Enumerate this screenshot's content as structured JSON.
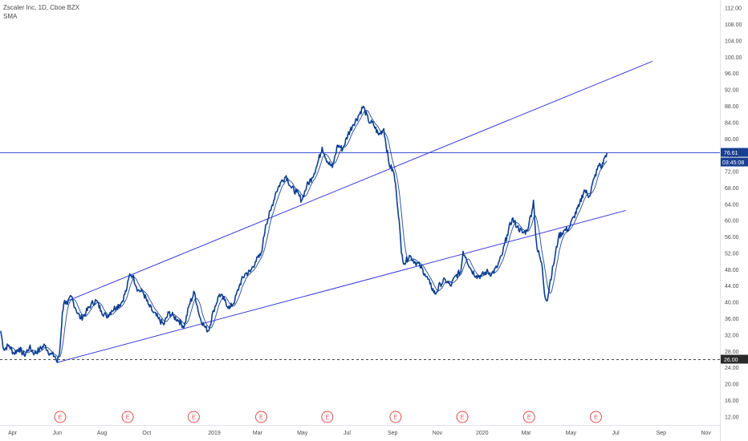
{
  "header": {
    "symbol_line": "Zscaler Inc, 1D, Cboe BZX",
    "indicator": "SMA"
  },
  "colors": {
    "price": "#0d3e91",
    "sma": "#0d3e91",
    "trendline": "#3b3bdc",
    "hline": "#3f51d6",
    "support": "#444444",
    "earnings": "#e64a4a",
    "axis_text": "#4a4a4a",
    "price_badge_bg": "#1a3f8f",
    "support_badge_bg": "#2a2a2a"
  },
  "chart_data": {
    "type": "line",
    "title": "Zscaler Inc, 1D, Cboe BZX",
    "indicator": "SMA",
    "ylim": [
      10,
      114
    ],
    "y_ticks": [
      "112.00",
      "108.00",
      "104.00",
      "100.00",
      "96.00",
      "92.00",
      "88.00",
      "84.00",
      "80.00",
      "76.00",
      "72.00",
      "68.00",
      "64.00",
      "60.00",
      "56.00",
      "52.00",
      "48.00",
      "44.00",
      "40.00",
      "36.00",
      "32.00",
      "28.00",
      "24.00",
      "20.00",
      "16.00",
      "12.00"
    ],
    "x_range": [
      "2018-03-15",
      "2020-11-20"
    ],
    "x_ticks": [
      {
        "label": "Apr",
        "date": "2018-04-01"
      },
      {
        "label": "Jun",
        "date": "2018-06-01"
      },
      {
        "label": "Aug",
        "date": "2018-08-01"
      },
      {
        "label": "Oct",
        "date": "2018-10-01"
      },
      {
        "label": "2019",
        "date": "2019-01-01"
      },
      {
        "label": "Mar",
        "date": "2019-03-01"
      },
      {
        "label": "May",
        "date": "2019-05-01"
      },
      {
        "label": "Jul",
        "date": "2019-07-01"
      },
      {
        "label": "Sep",
        "date": "2019-09-01"
      },
      {
        "label": "Nov",
        "date": "2019-11-01"
      },
      {
        "label": "2020",
        "date": "2020-01-01"
      },
      {
        "label": "Mar",
        "date": "2020-03-01"
      },
      {
        "label": "May",
        "date": "2020-05-01"
      },
      {
        "label": "Jul",
        "date": "2020-07-01"
      },
      {
        "label": "Sep",
        "date": "2020-09-01"
      },
      {
        "label": "Nov",
        "date": "2020-11-01"
      }
    ],
    "series": [
      {
        "role": "price",
        "points": [
          [
            "2018-03-16",
            33.0
          ],
          [
            "2018-03-20",
            28.5
          ],
          [
            "2018-03-27",
            29.5
          ],
          [
            "2018-04-03",
            27.5
          ],
          [
            "2018-04-10",
            28.8
          ],
          [
            "2018-04-17",
            27.0
          ],
          [
            "2018-04-24",
            29.0
          ],
          [
            "2018-05-01",
            27.5
          ],
          [
            "2018-05-08",
            28.5
          ],
          [
            "2018-05-15",
            29.5
          ],
          [
            "2018-05-22",
            27.5
          ],
          [
            "2018-05-29",
            26.8
          ],
          [
            "2018-06-01",
            25.3
          ],
          [
            "2018-06-04",
            27.5
          ],
          [
            "2018-06-06",
            32.0
          ],
          [
            "2018-06-08",
            37.5
          ],
          [
            "2018-06-11",
            40.5
          ],
          [
            "2018-06-15",
            39.5
          ],
          [
            "2018-06-20",
            41.5
          ],
          [
            "2018-06-26",
            38.5
          ],
          [
            "2018-07-03",
            36.0
          ],
          [
            "2018-07-10",
            37.5
          ],
          [
            "2018-07-17",
            39.5
          ],
          [
            "2018-07-24",
            40.5
          ],
          [
            "2018-07-31",
            38.0
          ],
          [
            "2018-08-07",
            36.5
          ],
          [
            "2018-08-14",
            38.0
          ],
          [
            "2018-08-21",
            39.0
          ],
          [
            "2018-08-28",
            40.0
          ],
          [
            "2018-09-04",
            43.5
          ],
          [
            "2018-09-08",
            47.0
          ],
          [
            "2018-09-12",
            46.5
          ],
          [
            "2018-09-19",
            43.0
          ],
          [
            "2018-09-26",
            42.5
          ],
          [
            "2018-10-03",
            39.5
          ],
          [
            "2018-10-10",
            37.5
          ],
          [
            "2018-10-17",
            36.0
          ],
          [
            "2018-10-24",
            34.5
          ],
          [
            "2018-10-31",
            37.5
          ],
          [
            "2018-11-07",
            36.5
          ],
          [
            "2018-11-14",
            35.5
          ],
          [
            "2018-11-21",
            34.0
          ],
          [
            "2018-11-28",
            39.5
          ],
          [
            "2018-12-05",
            42.5
          ],
          [
            "2018-12-12",
            36.5
          ],
          [
            "2018-12-19",
            34.0
          ],
          [
            "2018-12-24",
            33.0
          ],
          [
            "2018-12-31",
            38.0
          ],
          [
            "2019-01-08",
            42.0
          ],
          [
            "2019-01-15",
            40.5
          ],
          [
            "2019-01-22",
            38.5
          ],
          [
            "2019-01-29",
            40.5
          ],
          [
            "2019-02-05",
            44.5
          ],
          [
            "2019-02-12",
            47.0
          ],
          [
            "2019-02-19",
            47.5
          ],
          [
            "2019-02-26",
            50.0
          ],
          [
            "2019-03-05",
            51.5
          ],
          [
            "2019-03-08",
            54.0
          ],
          [
            "2019-03-12",
            59.0
          ],
          [
            "2019-03-19",
            62.5
          ],
          [
            "2019-03-26",
            67.0
          ],
          [
            "2019-04-02",
            69.5
          ],
          [
            "2019-04-09",
            71.0
          ],
          [
            "2019-04-16",
            68.0
          ],
          [
            "2019-04-23",
            67.0
          ],
          [
            "2019-04-30",
            65.0
          ],
          [
            "2019-05-07",
            68.5
          ],
          [
            "2019-05-14",
            70.5
          ],
          [
            "2019-05-21",
            73.5
          ],
          [
            "2019-05-28",
            78.0
          ],
          [
            "2019-06-04",
            74.5
          ],
          [
            "2019-06-11",
            73.0
          ],
          [
            "2019-06-18",
            78.5
          ],
          [
            "2019-06-25",
            77.5
          ],
          [
            "2019-07-02",
            81.0
          ],
          [
            "2019-07-09",
            83.5
          ],
          [
            "2019-07-16",
            85.5
          ],
          [
            "2019-07-23",
            88.0
          ],
          [
            "2019-07-30",
            84.5
          ],
          [
            "2019-08-06",
            83.5
          ],
          [
            "2019-08-13",
            81.0
          ],
          [
            "2019-08-20",
            82.5
          ],
          [
            "2019-08-27",
            74.0
          ],
          [
            "2019-09-03",
            71.5
          ],
          [
            "2019-09-06",
            67.0
          ],
          [
            "2019-09-10",
            60.0
          ],
          [
            "2019-09-13",
            52.0
          ],
          [
            "2019-09-17",
            49.5
          ],
          [
            "2019-09-24",
            51.5
          ],
          [
            "2019-10-01",
            50.0
          ],
          [
            "2019-10-08",
            49.0
          ],
          [
            "2019-10-15",
            47.0
          ],
          [
            "2019-10-22",
            44.5
          ],
          [
            "2019-10-29",
            42.0
          ],
          [
            "2019-11-05",
            44.5
          ],
          [
            "2019-11-12",
            45.5
          ],
          [
            "2019-11-19",
            44.0
          ],
          [
            "2019-11-26",
            46.5
          ],
          [
            "2019-12-03",
            47.5
          ],
          [
            "2019-12-06",
            52.5
          ],
          [
            "2019-12-10",
            51.0
          ],
          [
            "2019-12-17",
            48.0
          ],
          [
            "2019-12-24",
            46.5
          ],
          [
            "2019-12-31",
            46.5
          ],
          [
            "2020-01-07",
            47.5
          ],
          [
            "2020-01-14",
            47.0
          ],
          [
            "2020-01-21",
            48.5
          ],
          [
            "2020-01-28",
            51.5
          ],
          [
            "2020-02-04",
            56.5
          ],
          [
            "2020-02-11",
            60.5
          ],
          [
            "2020-02-18",
            58.5
          ],
          [
            "2020-02-25",
            57.0
          ],
          [
            "2020-03-02",
            57.5
          ],
          [
            "2020-03-05",
            59.5
          ],
          [
            "2020-03-09",
            62.5
          ],
          [
            "2020-03-11",
            65.0
          ],
          [
            "2020-03-13",
            59.0
          ],
          [
            "2020-03-16",
            53.0
          ],
          [
            "2020-03-19",
            51.5
          ],
          [
            "2020-03-23",
            48.5
          ],
          [
            "2020-03-26",
            42.0
          ],
          [
            "2020-03-30",
            40.5
          ],
          [
            "2020-04-02",
            44.5
          ],
          [
            "2020-04-07",
            49.0
          ],
          [
            "2020-04-14",
            56.0
          ],
          [
            "2020-04-21",
            57.5
          ],
          [
            "2020-04-28",
            58.0
          ],
          [
            "2020-05-05",
            61.0
          ],
          [
            "2020-05-12",
            63.5
          ],
          [
            "2020-05-19",
            67.5
          ],
          [
            "2020-05-26",
            66.0
          ],
          [
            "2020-06-02",
            70.5
          ],
          [
            "2020-06-09",
            74.0
          ],
          [
            "2020-06-12",
            73.0
          ],
          [
            "2020-06-16",
            75.5
          ],
          [
            "2020-06-19",
            76.61
          ]
        ]
      }
    ],
    "sma_period": 10,
    "trendlines": [
      {
        "role": "upper-channel",
        "from": [
          "2018-06-10",
          40.0
        ],
        "to": [
          "2020-08-20",
          99.0
        ]
      },
      {
        "role": "lower-channel",
        "from": [
          "2018-06-01",
          25.3
        ],
        "to": [
          "2020-07-15",
          62.5
        ]
      }
    ],
    "horizontal_lines": [
      {
        "role": "resistance",
        "price": 76.61,
        "style": "solid"
      },
      {
        "role": "support",
        "price": 26.0,
        "style": "dashed"
      }
    ],
    "earnings_markers": [
      {
        "label": "E",
        "date": "2018-06-05"
      },
      {
        "label": "E",
        "date": "2018-09-05"
      },
      {
        "label": "E",
        "date": "2018-12-04"
      },
      {
        "label": "E",
        "date": "2019-03-06"
      },
      {
        "label": "E",
        "date": "2019-06-04"
      },
      {
        "label": "E",
        "date": "2019-09-05"
      },
      {
        "label": "E",
        "date": "2019-12-05"
      },
      {
        "label": "E",
        "date": "2020-03-05"
      },
      {
        "label": "E",
        "date": "2020-06-04"
      }
    ],
    "last_price_label": "76.61",
    "countdown_label": "03:45:08",
    "support_label": "26.00",
    "grid": false
  }
}
